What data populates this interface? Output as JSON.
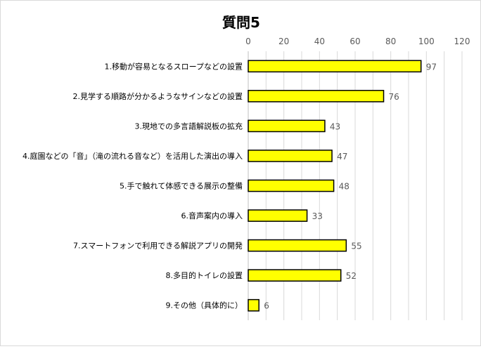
{
  "chart_data": {
    "type": "bar",
    "orientation": "horizontal",
    "title": "質問5",
    "categories": [
      "1.移動が容易となるスロープなどの設置",
      "2.見学する順路が分かるようなサインなどの設置",
      "3.現地での多言語解説板の拡充",
      "4.庭園などの「音」（滝の流れる音など）を活用した演出の導入",
      "5.手で触れて体感できる展示の整備",
      "6.音声案内の導入",
      "7.スマートフォンで利用できる解説アプリの開発",
      "8.多目的トイレの設置",
      "9.その他（具体的に）"
    ],
    "values": [
      97,
      76,
      43,
      47,
      48,
      33,
      55,
      52,
      6
    ],
    "xlim": [
      0,
      120
    ],
    "xticks": [
      "0",
      "20",
      "40",
      "60",
      "80",
      "100",
      "120"
    ],
    "x_axis_position": "top",
    "grid": true,
    "legend": "none",
    "bar_color": "#ffff00",
    "bar_edge_color": "#000000",
    "grid_color": "#d9d9d9"
  }
}
